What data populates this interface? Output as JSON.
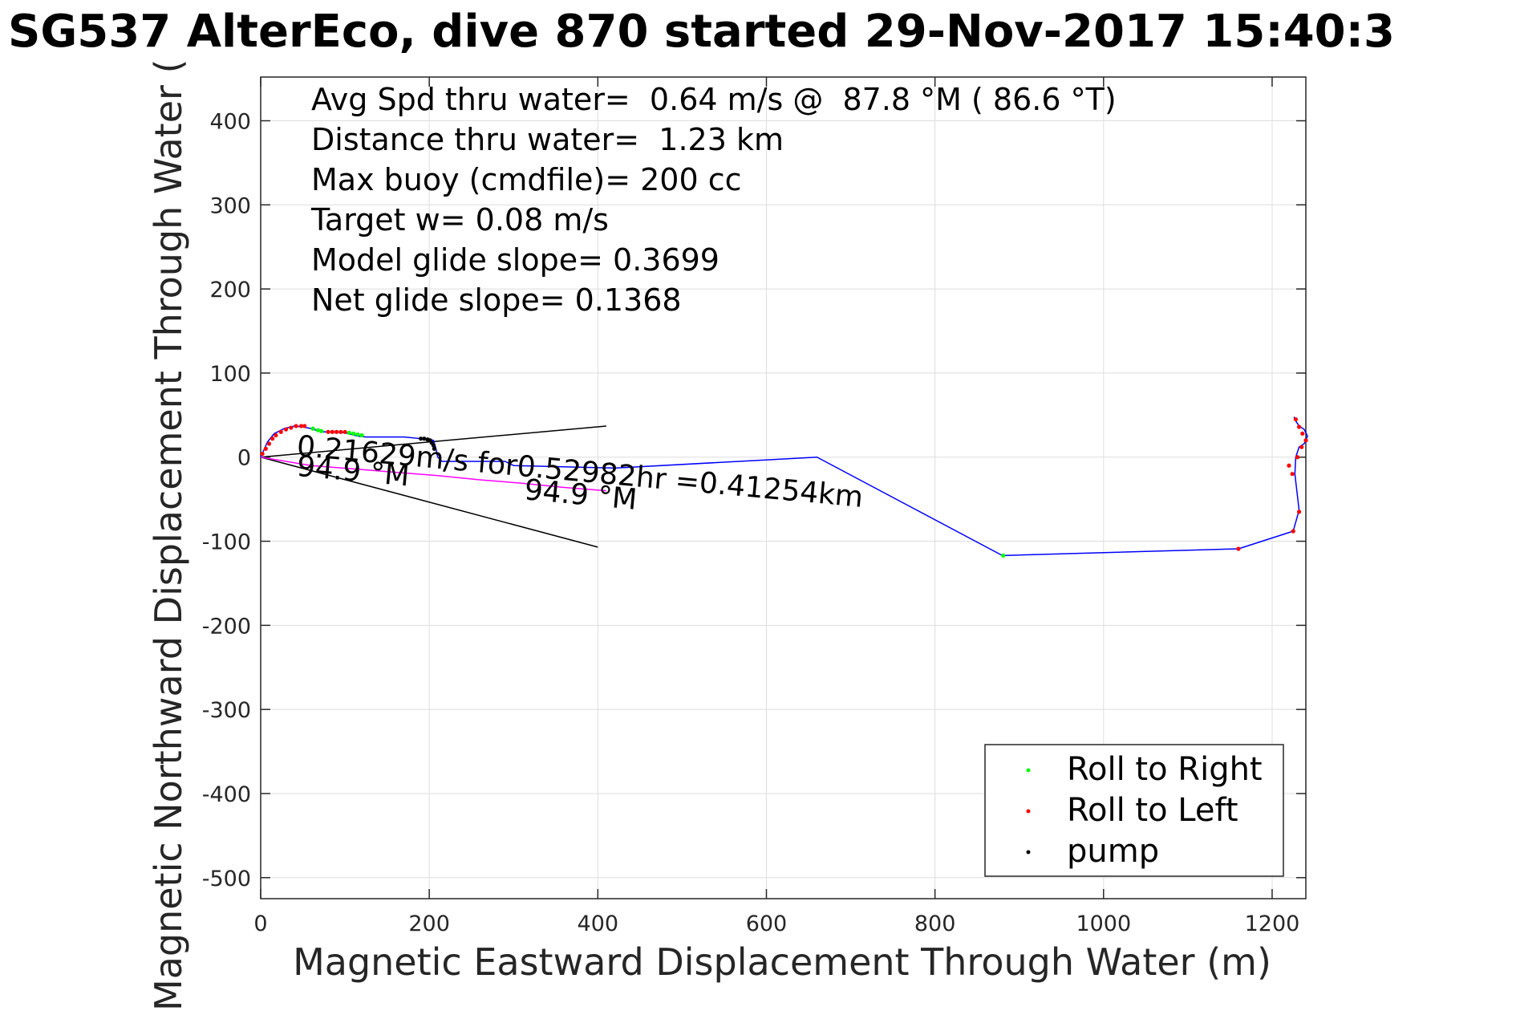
{
  "chart_data": {
    "type": "line",
    "title": "SG537 AlterEco, dive 870 started 29-Nov-2017 15:40:3",
    "xlabel": "Magnetic Eastward Displacement Through Water (m)",
    "ylabel": "Magnetic Northward Displacement Through Water (",
    "xlim": [
      0,
      1240
    ],
    "ylim": [
      -525,
      452
    ],
    "grid": true,
    "x_ticks": [
      {
        "value": 0,
        "label": "0"
      },
      {
        "value": 200,
        "label": "200"
      },
      {
        "value": 400,
        "label": "400"
      },
      {
        "value": 600,
        "label": "600"
      },
      {
        "value": 800,
        "label": "800"
      },
      {
        "value": 1000,
        "label": "1000"
      },
      {
        "value": 1200,
        "label": "1200"
      }
    ],
    "y_ticks": [
      {
        "value": 400,
        "label": "400"
      },
      {
        "value": 300,
        "label": "300"
      },
      {
        "value": 200,
        "label": "200"
      },
      {
        "value": 100,
        "label": "100"
      },
      {
        "value": 0,
        "label": "0"
      },
      {
        "value": -100,
        "label": "-100"
      },
      {
        "value": -200,
        "label": "-200"
      },
      {
        "value": -300,
        "label": "-300"
      },
      {
        "value": -400,
        "label": "-400"
      },
      {
        "value": -500,
        "label": "-500"
      }
    ],
    "info_lines": [
      "Avg Spd thru water=  0.64 m/s @  87.8 °M ( 86.6 °T)",
      "Distance thru water=  1.23 km",
      "Max buoy (cmdfile)= 200 cc",
      "Target w= 0.08 m/s",
      "Model glide slope= 0.3699",
      "Net glide slope= 0.1368"
    ],
    "annotations": [
      {
        "text": "0.21629m/s for0.52982hr =0.41254km",
        "x": 42,
        "y": 2,
        "rotation": 5.2
      },
      {
        "text": "94.9 °M",
        "x": 42,
        "y": -22,
        "rotation": 5.2
      },
      {
        "text": "94.9 °M",
        "x": 312,
        "y": -50,
        "rotation": 5.2
      }
    ],
    "series": [
      {
        "name": "blue track",
        "color": "#0000ff",
        "x": [
          0,
          8,
          16,
          28,
          40,
          50,
          60,
          72,
          85,
          100,
          115,
          125,
          170,
          190,
          205,
          208,
          210,
          215,
          290,
          300,
          420,
          660,
          880,
          1160,
          1225,
          1232,
          1227,
          1228,
          1232,
          1238,
          1242,
          1238,
          1232,
          1228,
          1226
        ],
        "y": [
          0,
          18,
          28,
          34,
          37,
          36,
          34,
          30,
          30,
          29,
          25,
          24,
          24,
          22,
          20,
          10,
          0,
          -5,
          -5,
          -10,
          -13,
          0,
          -117,
          -109,
          -88,
          -63,
          -20,
          0,
          12,
          16,
          25,
          33,
          37,
          43,
          48
        ]
      },
      {
        "name": "magenta track",
        "color": "#ff00ff",
        "x": [
          0,
          60,
          110,
          160,
          210,
          260,
          310,
          360,
          410
        ],
        "y": [
          0,
          -10,
          -14,
          -18,
          -22,
          -27,
          -31,
          -36,
          -40
        ]
      },
      {
        "name": "Roll to Right",
        "color": "#00ff00",
        "marker": "dot",
        "x": [
          62,
          68,
          72,
          105,
          110,
          115,
          120,
          881
        ],
        "y": [
          34,
          32,
          31,
          29,
          28,
          27,
          26,
          -117
        ]
      },
      {
        "name": "Roll to Left",
        "color": "#ff0000",
        "marker": "dot",
        "x": [
          2,
          6,
          10,
          14,
          18,
          24,
          30,
          36,
          42,
          48,
          52,
          80,
          85,
          90,
          95,
          100,
          1160,
          1225,
          1232,
          1220,
          1224,
          1230,
          1235,
          1240,
          1236,
          1232,
          1228
        ],
        "y": [
          4,
          10,
          16,
          22,
          26,
          30,
          33,
          35,
          37,
          37,
          37,
          30,
          30,
          30,
          30,
          30,
          -109,
          -88,
          -65,
          -10,
          -20,
          0,
          12,
          20,
          28,
          36,
          45
        ]
      },
      {
        "name": "pump",
        "color": "#000000",
        "marker": "dot",
        "x": [
          190,
          194,
          198,
          201,
          203,
          205,
          206
        ],
        "y": [
          22,
          22,
          21,
          20,
          17,
          14,
          10
        ]
      }
    ],
    "reference_lines": [
      {
        "x": [
          0,
          410
        ],
        "y": [
          0,
          37
        ]
      },
      {
        "x": [
          0,
          400
        ],
        "y": [
          0,
          -107
        ]
      }
    ],
    "legend": {
      "location": "bottom-right",
      "entries": [
        {
          "label": "Roll to Right",
          "color": "#00ff00"
        },
        {
          "label": "Roll to Left",
          "color": "#ff0000"
        },
        {
          "label": "pump",
          "color": "#000000"
        }
      ]
    }
  }
}
